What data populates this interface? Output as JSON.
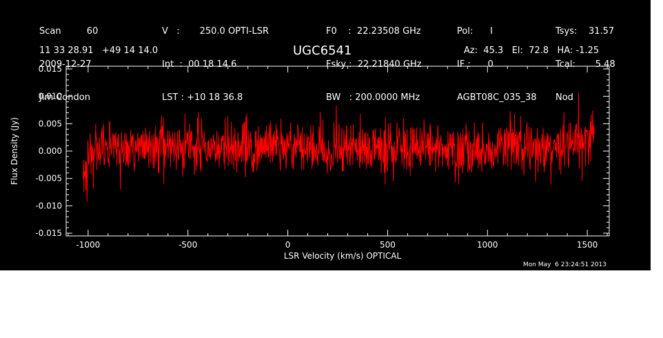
{
  "header": {
    "col1": [
      "Scan         60",
      "2009-12-27",
      "Jim Condon"
    ],
    "col2": [
      "V   :       250.0 OPTI-LSR",
      "Int  :  00 18 14.6",
      "LST : +10 18 36.8"
    ],
    "col3": [
      "F0    :  22.23508 GHz",
      "Fsky :  22.21840 GHz",
      "BW   : 200.0000 MHz"
    ],
    "col4": [
      "Pol:      I",
      "IF :      0",
      "AGBT08C_035_38"
    ],
    "col5": [
      "Tsys:    31.57",
      "Tcal:       5.48",
      "Nod"
    ],
    "coords": "11 33 28.91   +49 14 14.0",
    "source": "UGC6541",
    "azelha": "Az:  45.3   El:  72.8   HA: -1.25",
    "timestamp": "Mon May  6 23:24:51 2013"
  },
  "colors": {
    "background": "#000000",
    "trace": "#ff0000",
    "axes": "#ffffff"
  },
  "chart_data": {
    "type": "line",
    "title": "UGC6541",
    "xlabel": "LSR Velocity (km/s) OPTICAL",
    "ylabel": "Flux Density (Jy)",
    "xlim": [
      -1110,
      1610
    ],
    "ylim": [
      -0.0155,
      0.0155
    ],
    "x_ticks": [
      -1000,
      -500,
      0,
      500,
      1000,
      1500
    ],
    "x_tick_labels": [
      "-1000",
      "-500",
      "0",
      "500",
      "1000",
      "1500"
    ],
    "y_ticks": [
      -0.015,
      -0.01,
      -0.005,
      0.0,
      0.005,
      0.01,
      0.015
    ],
    "y_tick_labels": [
      "-0.015",
      "-0.010",
      "-0.005",
      "0.000",
      "0.005",
      "0.010",
      "0.015"
    ],
    "grid": false,
    "series": [
      {
        "color": "#ff0000",
        "x": [
          -1025,
          -1015,
          -1000,
          -950,
          -900,
          -850,
          -800,
          -750,
          -700,
          -650,
          -600,
          -550,
          -500,
          -450,
          -400,
          -350,
          -300,
          -250,
          -200,
          -150,
          -100,
          -50,
          0,
          50,
          100,
          150,
          200,
          250,
          300,
          350,
          400,
          450,
          500,
          550,
          600,
          650,
          700,
          750,
          800,
          850,
          900,
          950,
          1000,
          1050,
          1100,
          1150,
          1200,
          1250,
          1300,
          1350,
          1400,
          1450,
          1500,
          1520,
          1535
        ],
        "values": [
          -0.0055,
          -0.003,
          -0.001,
          0.0005,
          0.0008,
          0.001,
          0.001,
          0.0008,
          0.0008,
          0.0008,
          0.0006,
          0.0006,
          0.0006,
          0.0008,
          0.0009,
          0.0008,
          0.0006,
          0.0006,
          0.0005,
          0.0005,
          0.0006,
          0.0008,
          0.0008,
          0.0006,
          0.0005,
          0.0006,
          0.0007,
          0.0006,
          0.0005,
          0.0006,
          0.0005,
          0.0006,
          0.0008,
          0.0008,
          0.0006,
          0.0006,
          0.0008,
          0.0008,
          0.0006,
          0.0005,
          0.0006,
          0.0007,
          0.0006,
          0.0004,
          0.0006,
          0.0008,
          0.0006,
          0.0005,
          0.0006,
          0.0008,
          0.001,
          0.0015,
          0.002,
          0.003,
          0.0045
        ],
        "noise_rms": 0.0024
      }
    ]
  }
}
